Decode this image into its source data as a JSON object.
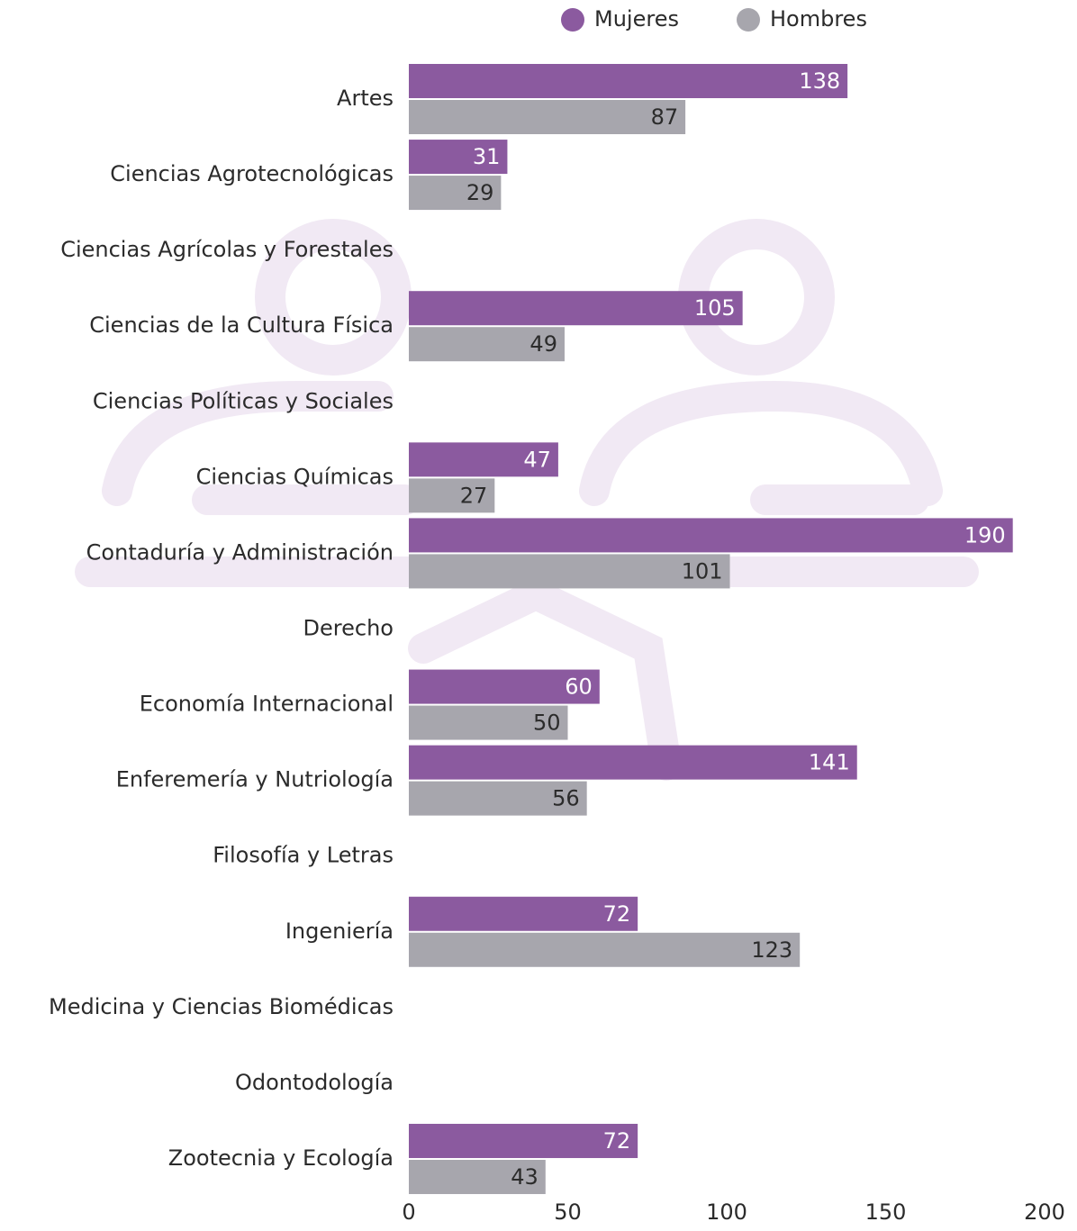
{
  "chart_data": {
    "type": "barh",
    "categories": [
      "Artes",
      "Ciencias Agrotecnológicas",
      "Ciencias Agrícolas y Forestales",
      "Ciencias de la Cultura Física",
      "Ciencias Políticas y Sociales",
      "Ciencias Químicas",
      "Contaduría y Administración",
      "Derecho",
      "Economía Internacional",
      "Enferemería y Nutriología",
      "Filosofía y Letras",
      "Ingeniería",
      "Medicina y Ciencias Biomédicas",
      "Odontodología",
      "Zootecnia y Ecología"
    ],
    "series": [
      {
        "name": "Mujeres",
        "color": "#8b5a9f",
        "values": [
          138,
          31,
          null,
          105,
          null,
          47,
          190,
          null,
          60,
          141,
          null,
          72,
          null,
          null,
          72
        ]
      },
      {
        "name": "Hombres",
        "color": "#a7a6ad",
        "values": [
          87,
          29,
          null,
          49,
          null,
          27,
          101,
          null,
          50,
          56,
          null,
          123,
          null,
          null,
          43
        ]
      }
    ],
    "xlim": [
      0,
      200
    ],
    "xticks": [
      0,
      50,
      100,
      150,
      200
    ],
    "grid": false,
    "legend": "top"
  }
}
